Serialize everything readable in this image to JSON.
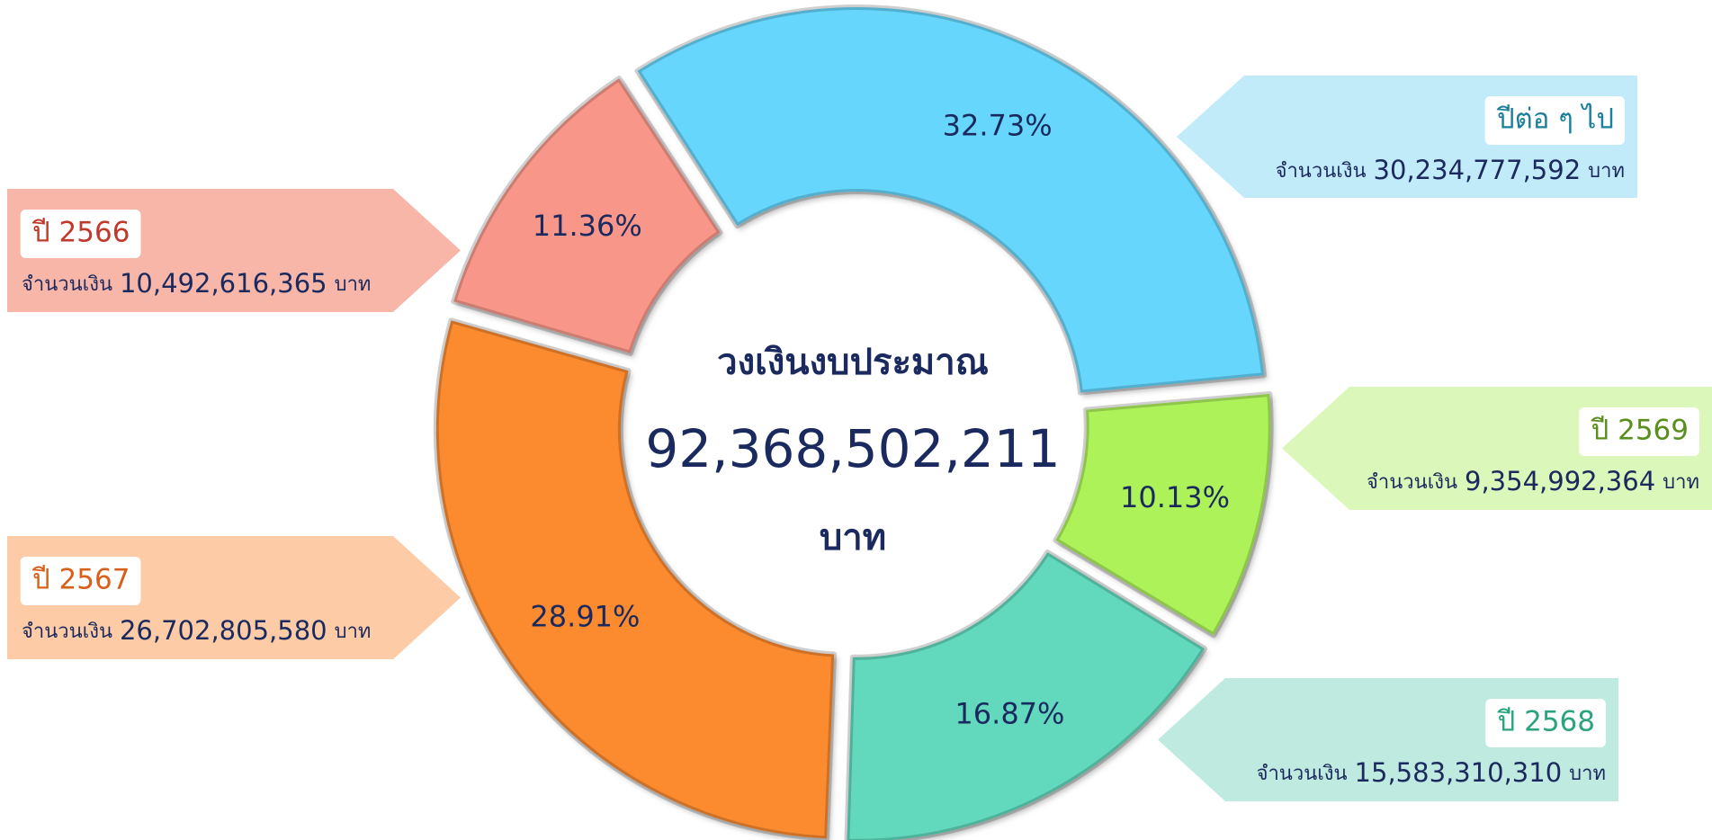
{
  "chart_data": {
    "type": "pie",
    "center_title": "วงเงินงบประมาณ",
    "center_total": "92,368,502,211",
    "center_unit": "บาท",
    "amount_prefix": "จำนวนเงิน",
    "amount_unit": "บาท",
    "categories": [
      "ปีต่อ ๆ ไป",
      "ปี 2569",
      "ปี 2568",
      "ปี 2567",
      "ปี 2566"
    ],
    "values": [
      32.73,
      10.13,
      16.87,
      28.91,
      11.36
    ],
    "value_labels": [
      "32.73%",
      "10.13%",
      "16.87%",
      "28.91%",
      "11.36%"
    ],
    "amount_labels": [
      "30,234,777,592",
      "9,354,992,364",
      "15,583,310,310",
      "26,702,805,580",
      "10,492,616,365"
    ],
    "colors": [
      "#66d6fc",
      "#aef25a",
      "#62d9bd",
      "#fc8a2e",
      "#f9968a"
    ],
    "callout_colors": [
      "#c2ebfa",
      "#dbf7b9",
      "#bfeadf",
      "#fdcca6",
      "#f8b6a9"
    ],
    "label_colors": [
      "#1a7f9c",
      "#5a8f1e",
      "#2aa37f",
      "#d8601a",
      "#c0392b"
    ]
  }
}
